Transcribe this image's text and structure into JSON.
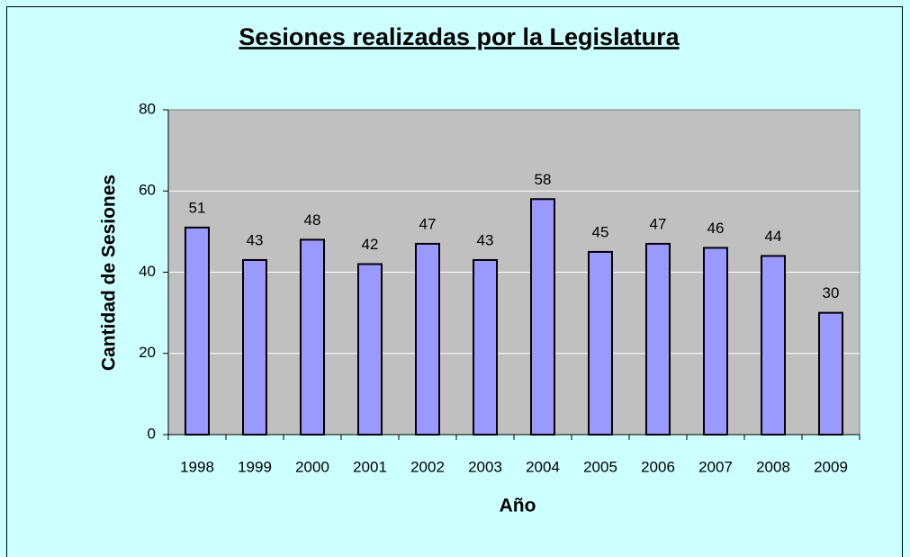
{
  "chart_data": {
    "type": "bar",
    "title": "Sesiones realizadas por la Legislatura",
    "x_label": "Año",
    "y_label": "Cantidad de Sesiones",
    "categories": [
      "1998",
      "1999",
      "2000",
      "2001",
      "2002",
      "2003",
      "2004",
      "2005",
      "2006",
      "2007",
      "2008",
      "2009"
    ],
    "values": [
      51,
      43,
      48,
      42,
      47,
      43,
      58,
      45,
      47,
      46,
      44,
      30
    ],
    "color": "#9999ff",
    "ylim": [
      0,
      80
    ],
    "yticks": [
      0,
      20,
      40,
      60,
      80
    ],
    "grid": true
  }
}
